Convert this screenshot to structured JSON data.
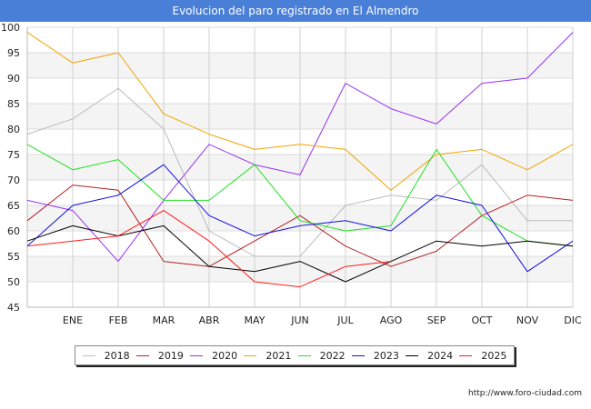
{
  "title": "Evolucion del paro registrado en El Almendro",
  "source": "http://www.foro-ciudad.com",
  "chart_data": {
    "type": "line",
    "title": "Evolucion del paro registrado en El Almendro",
    "categories": [
      "",
      "ENE",
      "FEB",
      "MAR",
      "ABR",
      "MAY",
      "JUN",
      "JUL",
      "AGO",
      "SEP",
      "OCT",
      "NOV",
      "DIC"
    ],
    "ylim": [
      45,
      100
    ],
    "yticks": [
      45,
      50,
      55,
      60,
      65,
      70,
      75,
      80,
      85,
      90,
      95,
      100
    ],
    "grid": true,
    "legend_position": "bottom",
    "series": [
      {
        "name": "2018",
        "color": "#bbbbbb",
        "values": [
          79,
          82,
          88,
          80,
          60,
          55,
          55,
          65,
          67,
          66,
          73,
          62,
          62
        ]
      },
      {
        "name": "2019",
        "color": "#b22222",
        "values": [
          62,
          69,
          68,
          54,
          53,
          58,
          63,
          57,
          53,
          56,
          63,
          67,
          66
        ]
      },
      {
        "name": "2020",
        "color": "#9932f0",
        "values": [
          66,
          64,
          54,
          66,
          77,
          73,
          71,
          89,
          84,
          81,
          89,
          90,
          99
        ]
      },
      {
        "name": "2021",
        "color": "#f0a500",
        "values": [
          99,
          93,
          95,
          83,
          79,
          76,
          77,
          76,
          68,
          75,
          76,
          72,
          77
        ]
      },
      {
        "name": "2022",
        "color": "#22e022",
        "values": [
          77,
          72,
          74,
          66,
          66,
          73,
          62,
          60,
          61,
          76,
          63,
          58,
          57
        ]
      },
      {
        "name": "2023",
        "color": "#1010e0",
        "values": [
          57,
          65,
          67,
          73,
          63,
          59,
          61,
          62,
          60,
          67,
          65,
          52,
          58
        ]
      },
      {
        "name": "2024",
        "color": "#000000",
        "values": [
          58,
          61,
          59,
          61,
          53,
          52,
          54,
          50,
          54,
          58,
          57,
          58,
          57
        ]
      },
      {
        "name": "2025",
        "color": "#ff1a1a",
        "values": [
          57,
          58,
          59,
          64,
          58,
          50,
          49,
          53,
          54,
          null,
          null,
          null,
          null
        ]
      }
    ]
  }
}
